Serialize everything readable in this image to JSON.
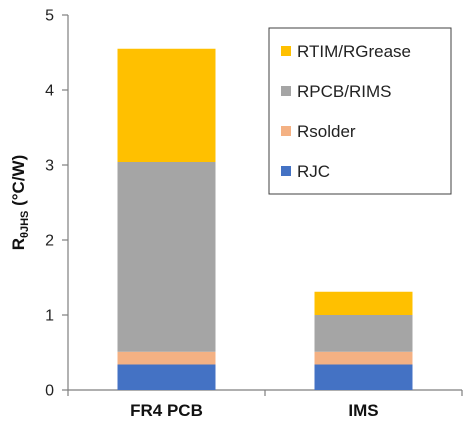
{
  "chart_data": {
    "type": "bar",
    "stacked": true,
    "categories": [
      "FR4 PCB",
      "IMS"
    ],
    "series": [
      {
        "name": "RJC",
        "color": "#4472C4",
        "values": [
          0.34,
          0.34
        ]
      },
      {
        "name": "Rsolder",
        "color": "#F4B183",
        "values": [
          0.17,
          0.17
        ]
      },
      {
        "name": "RPCB/RIMS",
        "color": "#A5A5A5",
        "values": [
          2.53,
          0.49
        ]
      },
      {
        "name": "RTIM/RGrease",
        "color": "#FFC000",
        "values": [
          1.51,
          0.31
        ]
      }
    ],
    "ylabel_main": "R",
    "ylabel_sub": "θJHS",
    "ylabel_unit": " (°C/W)",
    "ylim": [
      0,
      5
    ],
    "yticks": [
      "0",
      "1",
      "2",
      "3",
      "4",
      "5"
    ],
    "grid": false,
    "legend_position": "top-right",
    "legend_order": [
      "RTIM/RGrease",
      "RPCB/RIMS",
      "Rsolder",
      "RJC"
    ]
  }
}
